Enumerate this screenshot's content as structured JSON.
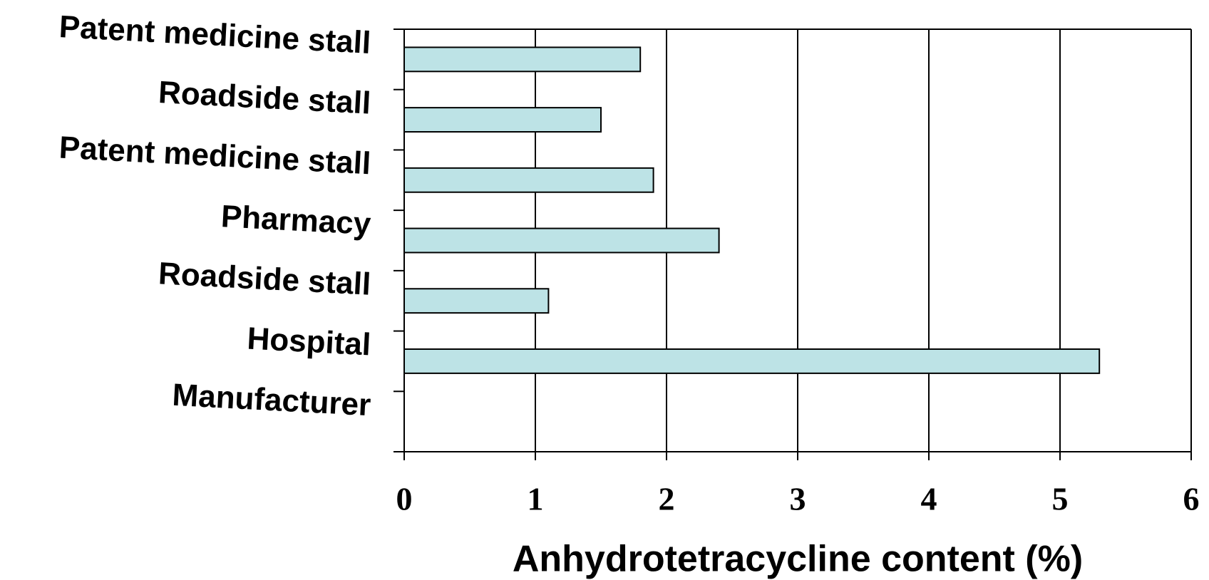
{
  "chart_data": {
    "type": "bar",
    "orientation": "horizontal",
    "x_label": "Anhydrotetracycline content (%)",
    "categories": [
      "Patent medicine stall",
      "Roadside stall",
      "Patent medicine stall",
      "Pharmacy",
      "Roadside stall",
      "Hospital",
      "Manufacturer"
    ],
    "values": [
      1.8,
      1.5,
      1.9,
      2.4,
      1.1,
      5.3,
      0
    ],
    "color": "#bde3e6",
    "xlim": [
      0,
      6
    ],
    "xticks": [
      0,
      1,
      2,
      3,
      4,
      5,
      6
    ],
    "grid": true
  }
}
